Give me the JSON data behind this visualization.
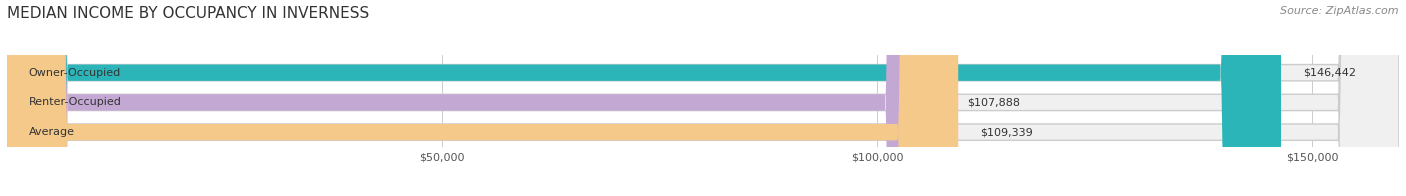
{
  "title": "MEDIAN INCOME BY OCCUPANCY IN INVERNESS",
  "source": "Source: ZipAtlas.com",
  "categories": [
    "Owner-Occupied",
    "Renter-Occupied",
    "Average"
  ],
  "values": [
    146442,
    107888,
    109339
  ],
  "bar_colors": [
    "#2bb5b8",
    "#c4a8d4",
    "#f5c98a"
  ],
  "bar_bg_color": "#f0f0f0",
  "value_labels": [
    "$146,442",
    "$107,888",
    "$109,339"
  ],
  "xlim": [
    0,
    160000
  ],
  "xticks": [
    0,
    50000,
    100000,
    150000
  ],
  "xtick_labels": [
    "",
    "$50,000",
    "$100,000",
    "$150,000"
  ],
  "title_fontsize": 11,
  "source_fontsize": 8,
  "label_fontsize": 8,
  "value_fontsize": 8,
  "figsize": [
    14.06,
    1.96
  ],
  "dpi": 100
}
